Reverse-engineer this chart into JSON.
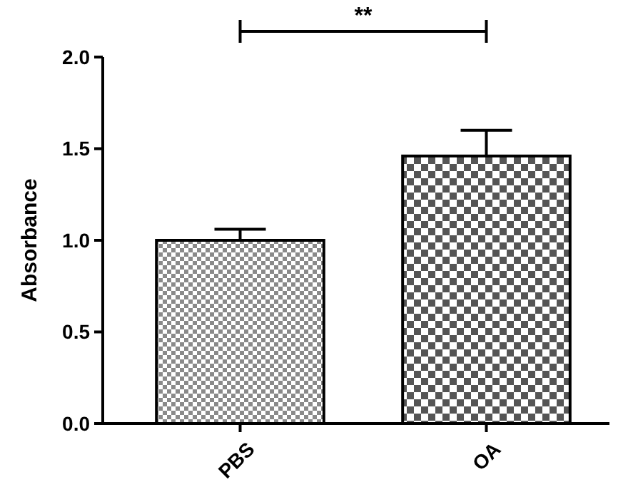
{
  "chart_data": {
    "type": "bar",
    "ylabel": "Absorbance",
    "categories": [
      "PBS",
      "OA"
    ],
    "values": [
      1.0,
      1.46
    ],
    "errors": [
      [
        1.0,
        1.06
      ],
      [
        1.46,
        1.6
      ]
    ],
    "colors": [
      "#8a8a8a",
      "#555555"
    ],
    "ylim": [
      0,
      2.0
    ],
    "yticks": [
      {
        "value": 0,
        "label": "0.0"
      },
      {
        "value": 0.5,
        "label": "0.5"
      },
      {
        "value": 1,
        "label": "1.0"
      },
      {
        "value": 1.5,
        "label": "1.5"
      },
      {
        "value": 2,
        "label": "2.0"
      }
    ],
    "annotations": [
      "**"
    ],
    "grid": false
  }
}
